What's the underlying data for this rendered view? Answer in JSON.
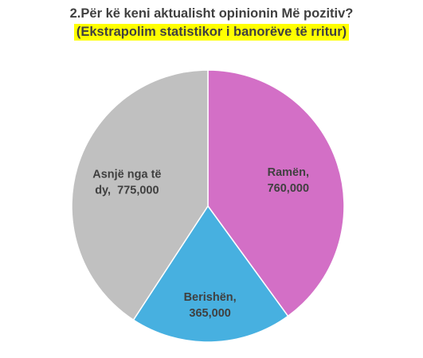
{
  "title": "2.Për kë keni aktualisht opinionin Më pozitiv?",
  "subtitle": "(Ekstrapolim statistikor i banorëve të rritur)",
  "subtitle_highlight": "#ffff00",
  "chart_data": {
    "type": "pie",
    "title": "2.Për kë keni aktualisht opinionin Më pozitiv?",
    "subtitle": "(Ekstrapolim statistikor i banorëve të rritur)",
    "slices": [
      {
        "name": "Ramën",
        "value": 760000,
        "label_lines": [
          "Ramën,",
          "760,000"
        ],
        "color": "#d36fc6"
      },
      {
        "name": "Berishën",
        "value": 365000,
        "label_lines": [
          "Berishën,",
          "365,000"
        ],
        "color": "#47b0e0"
      },
      {
        "name": "Asnjë nga të dy",
        "value": 775000,
        "label_lines": [
          "Asnjë nga të",
          "dy,  775,000"
        ],
        "color": "#c0c0c0"
      }
    ],
    "start": "top",
    "direction": "clockwise",
    "slice_border": "#ffffff",
    "legend": "none",
    "data_labels": "inside"
  }
}
